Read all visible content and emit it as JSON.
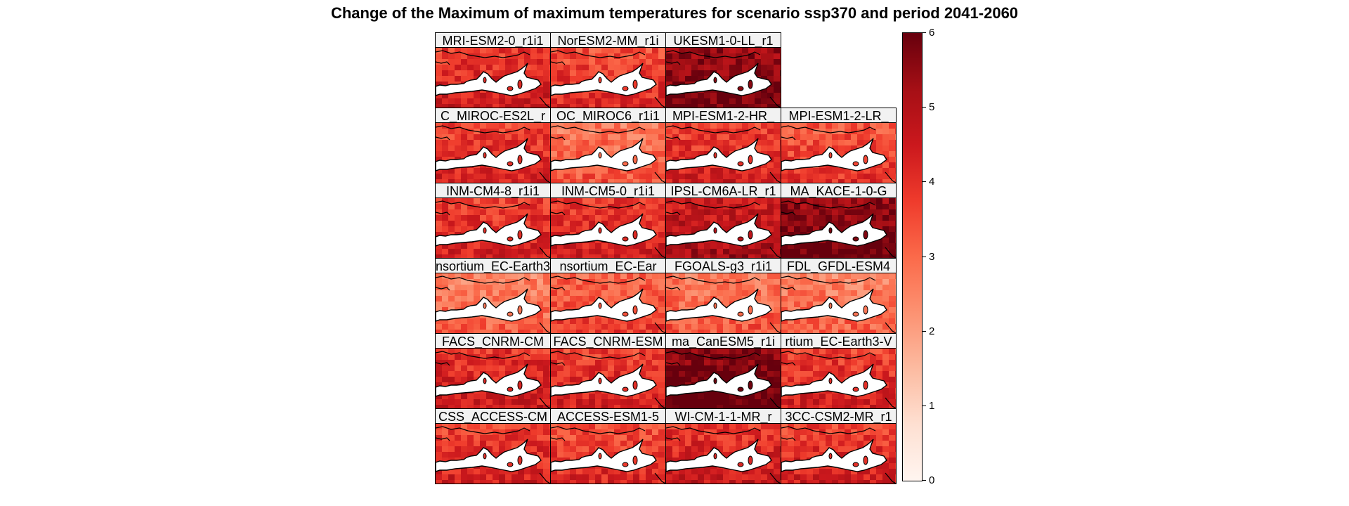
{
  "chart_data": {
    "type": "heatmap",
    "title": "Change of the Maximum of maximum temperatures for scenario ssp370 and period 2041-2060",
    "variable": "Maximum of maximum temperatures change",
    "scenario": "ssp370",
    "period": "2041-2060",
    "region": "Mediterranean",
    "colorbar": {
      "min": 0,
      "max": 6,
      "ticks": [
        0,
        1,
        2,
        3,
        4,
        5,
        6
      ],
      "palette": [
        "#fff5f0",
        "#fee0d2",
        "#fcbba1",
        "#fc9272",
        "#fb6a4a",
        "#ef3b2c",
        "#cb181d",
        "#a50f15",
        "#67000d"
      ]
    },
    "panels": [
      {
        "label": "MRI-ESM2-0_r1i1",
        "mean_change": 4.1
      },
      {
        "label": "NorESM2-MM_r1i",
        "mean_change": 3.8
      },
      {
        "label": "UKESM1-0-LL_r1",
        "mean_change": 5.6
      },
      {
        "label": "C_MIROC-ES2L_r",
        "mean_change": 4.0
      },
      {
        "label": "OC_MIROC6_r1i1",
        "mean_change": 3.0
      },
      {
        "label": "MPI-ESM1-2-HR_",
        "mean_change": 4.0
      },
      {
        "label": "MPI-ESM1-2-LR_",
        "mean_change": 3.6
      },
      {
        "label": "INM-CM4-8_r1i1",
        "mean_change": 4.0
      },
      {
        "label": "INM-CM5-0_r1i1",
        "mean_change": 4.1
      },
      {
        "label": "IPSL-CM6A-LR_r1",
        "mean_change": 4.8
      },
      {
        "label": "MA_KACE-1-0-G",
        "mean_change": 5.7
      },
      {
        "label": "nsortium_EC-Earth3",
        "mean_change": 2.8
      },
      {
        "label": "nsortium_EC-Ear",
        "mean_change": 3.4
      },
      {
        "label": "FGOALS-g3_r1i1",
        "mean_change": 3.0
      },
      {
        "label": "FDL_GFDL-ESM4",
        "mean_change": 2.8
      },
      {
        "label": "FACS_CNRM-CM",
        "mean_change": 4.2
      },
      {
        "label": "FACS_CNRM-ESM",
        "mean_change": 4.0
      },
      {
        "label": "ma_CanESM5_r1i",
        "mean_change": 5.9
      },
      {
        "label": "rtium_EC-Earth3-V",
        "mean_change": 4.0
      },
      {
        "label": "CSS_ACCESS-CM",
        "mean_change": 4.0
      },
      {
        "label": "ACCESS-ESM1-5",
        "mean_change": 3.8
      },
      {
        "label": "WI-CM-1-1-MR_r",
        "mean_change": 4.2
      },
      {
        "label": "3CC-CSM2-MR_r1",
        "mean_change": 4.0
      }
    ]
  }
}
